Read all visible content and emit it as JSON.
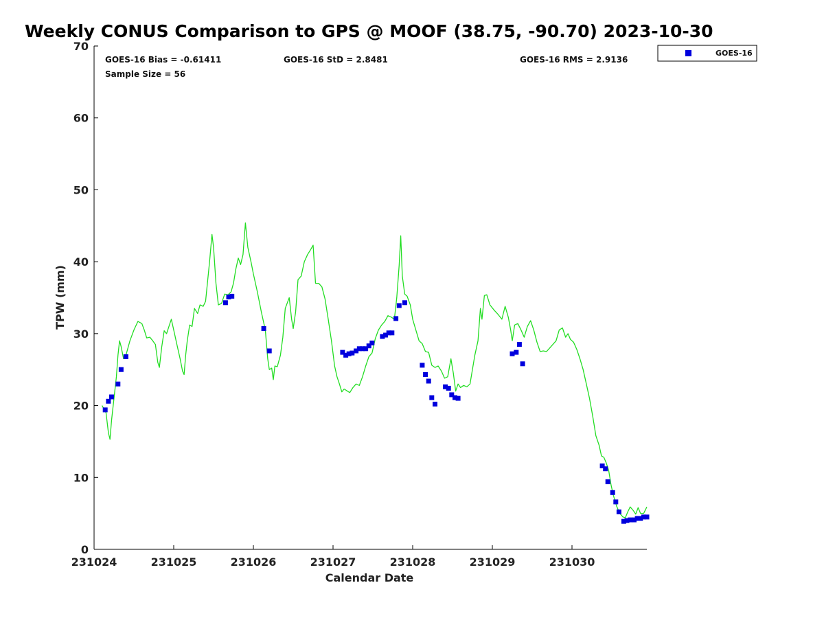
{
  "chart_data": {
    "type": "scatter",
    "title": "Weekly CONUS Comparison to GPS @ MOOF (38.75, -90.70) 2023-10-30",
    "xlabel": "Calendar Date",
    "ylabel": "TPW (mm)",
    "x_ticks": [
      {
        "value": 0,
        "label": "231024"
      },
      {
        "value": 1,
        "label": "231025"
      },
      {
        "value": 2,
        "label": "231026"
      },
      {
        "value": 3,
        "label": "231027"
      },
      {
        "value": 4,
        "label": "231028"
      },
      {
        "value": 5,
        "label": "231029"
      },
      {
        "value": 6,
        "label": "231030"
      }
    ],
    "xlim": [
      231024,
      231031
    ],
    "ylim": [
      0,
      70
    ],
    "y_ticks": [
      0,
      10,
      20,
      30,
      40,
      50,
      60,
      70
    ],
    "grid": false,
    "legend_position": "top-right",
    "stats": {
      "bias": "GOES-16 Bias = -0.61411",
      "std": "GOES-16 StD = 2.8481",
      "rms": "GOES-16 RMS = 2.9136",
      "sample": "Sample Size = 56"
    },
    "series": [
      {
        "name": "GOES-16",
        "color": "#0000dd",
        "marker": "square",
        "points": [
          [
            0.14,
            19.4
          ],
          [
            0.18,
            20.6
          ],
          [
            0.22,
            21.2
          ],
          [
            0.3,
            23.0
          ],
          [
            0.34,
            25.0
          ],
          [
            0.4,
            26.8
          ],
          [
            1.65,
            34.3
          ],
          [
            1.69,
            35.1
          ],
          [
            1.73,
            35.2
          ],
          [
            2.13,
            30.7
          ],
          [
            2.2,
            27.6
          ],
          [
            3.12,
            27.4
          ],
          [
            3.16,
            27.0
          ],
          [
            3.2,
            27.2
          ],
          [
            3.24,
            27.3
          ],
          [
            3.29,
            27.6
          ],
          [
            3.33,
            27.9
          ],
          [
            3.37,
            27.9
          ],
          [
            3.41,
            27.9
          ],
          [
            3.45,
            28.3
          ],
          [
            3.49,
            28.7
          ],
          [
            3.62,
            29.6
          ],
          [
            3.66,
            29.8
          ],
          [
            3.7,
            30.1
          ],
          [
            3.74,
            30.1
          ],
          [
            3.79,
            32.1
          ],
          [
            3.83,
            33.9
          ],
          [
            3.9,
            34.3
          ],
          [
            4.12,
            25.6
          ],
          [
            4.16,
            24.3
          ],
          [
            4.2,
            23.4
          ],
          [
            4.24,
            21.1
          ],
          [
            4.28,
            20.2
          ],
          [
            4.41,
            22.6
          ],
          [
            4.45,
            22.4
          ],
          [
            4.49,
            21.5
          ],
          [
            4.53,
            21.1
          ],
          [
            4.57,
            21.0
          ],
          [
            5.25,
            27.2
          ],
          [
            5.3,
            27.4
          ],
          [
            5.34,
            28.5
          ],
          [
            5.38,
            25.8
          ],
          [
            6.38,
            11.6
          ],
          [
            6.42,
            11.2
          ],
          [
            6.45,
            9.4
          ],
          [
            6.51,
            7.9
          ],
          [
            6.55,
            6.6
          ],
          [
            6.59,
            5.2
          ],
          [
            6.65,
            3.9
          ],
          [
            6.69,
            4.0
          ],
          [
            6.73,
            4.1
          ],
          [
            6.78,
            4.1
          ],
          [
            6.82,
            4.3
          ],
          [
            6.86,
            4.3
          ],
          [
            6.9,
            4.5
          ],
          [
            6.94,
            4.5
          ]
        ]
      }
    ],
    "gps_line": {
      "color": "#22dd22",
      "points": [
        [
          0.1,
          20.0
        ],
        [
          0.15,
          19.0
        ],
        [
          0.18,
          16.2
        ],
        [
          0.2,
          15.3
        ],
        [
          0.22,
          18.0
        ],
        [
          0.25,
          21.0
        ],
        [
          0.28,
          24.0
        ],
        [
          0.3,
          27.0
        ],
        [
          0.32,
          29.0
        ],
        [
          0.34,
          28.2
        ],
        [
          0.37,
          26.5
        ],
        [
          0.4,
          27.0
        ],
        [
          0.45,
          29.0
        ],
        [
          0.5,
          30.5
        ],
        [
          0.55,
          31.7
        ],
        [
          0.6,
          31.4
        ],
        [
          0.63,
          30.5
        ],
        [
          0.66,
          29.4
        ],
        [
          0.7,
          29.5
        ],
        [
          0.73,
          29.1
        ],
        [
          0.77,
          28.5
        ],
        [
          0.8,
          26.0
        ],
        [
          0.82,
          25.3
        ],
        [
          0.85,
          28.2
        ],
        [
          0.88,
          30.4
        ],
        [
          0.91,
          30.0
        ],
        [
          0.94,
          31.0
        ],
        [
          0.97,
          32.0
        ],
        [
          1.0,
          30.5
        ],
        [
          1.04,
          28.5
        ],
        [
          1.08,
          26.5
        ],
        [
          1.11,
          24.8
        ],
        [
          1.13,
          24.3
        ],
        [
          1.15,
          27.0
        ],
        [
          1.17,
          29.0
        ],
        [
          1.2,
          31.2
        ],
        [
          1.23,
          31.0
        ],
        [
          1.26,
          33.5
        ],
        [
          1.3,
          32.8
        ],
        [
          1.33,
          34.0
        ],
        [
          1.37,
          33.8
        ],
        [
          1.4,
          34.5
        ],
        [
          1.45,
          40.0
        ],
        [
          1.48,
          43.8
        ],
        [
          1.5,
          42.0
        ],
        [
          1.53,
          37.0
        ],
        [
          1.56,
          34.0
        ],
        [
          1.6,
          34.2
        ],
        [
          1.64,
          35.5
        ],
        [
          1.68,
          35.4
        ],
        [
          1.72,
          35.8
        ],
        [
          1.75,
          37.0
        ],
        [
          1.78,
          39.0
        ],
        [
          1.81,
          40.5
        ],
        [
          1.84,
          39.6
        ],
        [
          1.87,
          41.0
        ],
        [
          1.9,
          45.4
        ],
        [
          1.93,
          42.0
        ],
        [
          1.97,
          40.0
        ],
        [
          2.0,
          38.3
        ],
        [
          2.05,
          35.8
        ],
        [
          2.1,
          33.0
        ],
        [
          2.15,
          30.5
        ],
        [
          2.18,
          26.5
        ],
        [
          2.2,
          25.0
        ],
        [
          2.23,
          25.2
        ],
        [
          2.25,
          23.6
        ],
        [
          2.27,
          25.5
        ],
        [
          2.3,
          25.4
        ],
        [
          2.34,
          27.0
        ],
        [
          2.37,
          29.5
        ],
        [
          2.4,
          33.5
        ],
        [
          2.45,
          35.0
        ],
        [
          2.48,
          32.0
        ],
        [
          2.5,
          30.7
        ],
        [
          2.53,
          33.0
        ],
        [
          2.56,
          37.5
        ],
        [
          2.6,
          38.0
        ],
        [
          2.64,
          40.0
        ],
        [
          2.68,
          41.0
        ],
        [
          2.72,
          41.7
        ],
        [
          2.75,
          42.3
        ],
        [
          2.78,
          37.0
        ],
        [
          2.82,
          37.0
        ],
        [
          2.86,
          36.5
        ],
        [
          2.9,
          34.8
        ],
        [
          2.94,
          32.0
        ],
        [
          2.98,
          29.0
        ],
        [
          3.02,
          25.5
        ],
        [
          3.05,
          24.0
        ],
        [
          3.08,
          23.0
        ],
        [
          3.11,
          21.9
        ],
        [
          3.14,
          22.3
        ],
        [
          3.18,
          22.0
        ],
        [
          3.21,
          21.8
        ],
        [
          3.25,
          22.5
        ],
        [
          3.29,
          23.0
        ],
        [
          3.33,
          22.8
        ],
        [
          3.37,
          24.0
        ],
        [
          3.41,
          25.5
        ],
        [
          3.45,
          26.8
        ],
        [
          3.49,
          27.3
        ],
        [
          3.53,
          29.3
        ],
        [
          3.57,
          30.5
        ],
        [
          3.61,
          31.2
        ],
        [
          3.65,
          31.7
        ],
        [
          3.69,
          32.5
        ],
        [
          3.73,
          32.3
        ],
        [
          3.77,
          32.0
        ],
        [
          3.8,
          35.0
        ],
        [
          3.83,
          39.5
        ],
        [
          3.85,
          43.6
        ],
        [
          3.87,
          38.0
        ],
        [
          3.9,
          35.5
        ],
        [
          3.93,
          35.2
        ],
        [
          3.97,
          34.0
        ],
        [
          4.0,
          32.0
        ],
        [
          4.04,
          30.5
        ],
        [
          4.08,
          29.0
        ],
        [
          4.12,
          28.6
        ],
        [
          4.16,
          27.5
        ],
        [
          4.2,
          27.4
        ],
        [
          4.24,
          25.6
        ],
        [
          4.28,
          25.3
        ],
        [
          4.32,
          25.5
        ],
        [
          4.36,
          24.8
        ],
        [
          4.4,
          23.8
        ],
        [
          4.44,
          24.0
        ],
        [
          4.48,
          26.5
        ],
        [
          4.51,
          24.5
        ],
        [
          4.54,
          22.0
        ],
        [
          4.57,
          23.0
        ],
        [
          4.6,
          22.5
        ],
        [
          4.64,
          22.8
        ],
        [
          4.68,
          22.6
        ],
        [
          4.72,
          23.0
        ],
        [
          4.75,
          25.0
        ],
        [
          4.78,
          27.0
        ],
        [
          4.82,
          29.0
        ],
        [
          4.85,
          33.5
        ],
        [
          4.87,
          32.0
        ],
        [
          4.9,
          35.3
        ],
        [
          4.93,
          35.4
        ],
        [
          4.97,
          34.0
        ],
        [
          5.02,
          33.3
        ],
        [
          5.07,
          32.7
        ],
        [
          5.12,
          32.0
        ],
        [
          5.16,
          33.8
        ],
        [
          5.2,
          32.3
        ],
        [
          5.23,
          30.5
        ],
        [
          5.25,
          29.0
        ],
        [
          5.28,
          31.2
        ],
        [
          5.32,
          31.4
        ],
        [
          5.36,
          30.5
        ],
        [
          5.4,
          29.5
        ],
        [
          5.44,
          31.0
        ],
        [
          5.48,
          31.8
        ],
        [
          5.52,
          30.5
        ],
        [
          5.56,
          28.8
        ],
        [
          5.6,
          27.5
        ],
        [
          5.64,
          27.6
        ],
        [
          5.68,
          27.5
        ],
        [
          5.72,
          28.0
        ],
        [
          5.76,
          28.5
        ],
        [
          5.8,
          29.0
        ],
        [
          5.84,
          30.5
        ],
        [
          5.88,
          30.8
        ],
        [
          5.92,
          29.5
        ],
        [
          5.95,
          30.0
        ],
        [
          5.98,
          29.2
        ],
        [
          6.02,
          28.8
        ],
        [
          6.06,
          27.8
        ],
        [
          6.1,
          26.5
        ],
        [
          6.14,
          25.0
        ],
        [
          6.18,
          23.0
        ],
        [
          6.22,
          21.0
        ],
        [
          6.26,
          18.5
        ],
        [
          6.3,
          15.8
        ],
        [
          6.34,
          14.5
        ],
        [
          6.37,
          13.0
        ],
        [
          6.4,
          12.8
        ],
        [
          6.43,
          12.0
        ],
        [
          6.46,
          11.0
        ],
        [
          6.49,
          9.0
        ],
        [
          6.52,
          7.5
        ],
        [
          6.56,
          6.0
        ],
        [
          6.6,
          5.0
        ],
        [
          6.64,
          4.5
        ],
        [
          6.67,
          4.4
        ],
        [
          6.7,
          5.2
        ],
        [
          6.73,
          5.9
        ],
        [
          6.77,
          5.4
        ],
        [
          6.8,
          4.9
        ],
        [
          6.83,
          5.8
        ],
        [
          6.86,
          5.0
        ],
        [
          6.9,
          5.0
        ],
        [
          6.94,
          5.9
        ]
      ]
    }
  }
}
